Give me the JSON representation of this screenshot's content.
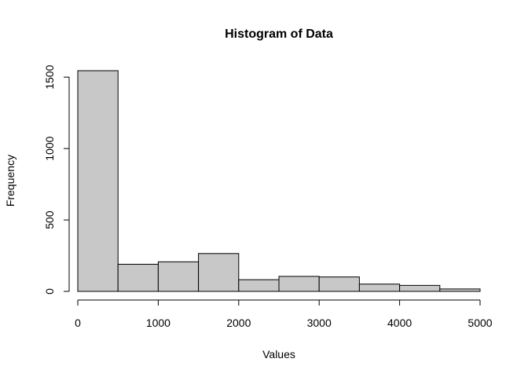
{
  "chart_data": {
    "type": "bar",
    "title": "Histogram of Data",
    "xlabel": "Values",
    "ylabel": "Frequency",
    "bins": [
      {
        "start": 0,
        "end": 500,
        "count": 1545
      },
      {
        "start": 500,
        "end": 1000,
        "count": 190
      },
      {
        "start": 1000,
        "end": 1500,
        "count": 207
      },
      {
        "start": 1500,
        "end": 2000,
        "count": 265
      },
      {
        "start": 2000,
        "end": 2500,
        "count": 82
      },
      {
        "start": 2500,
        "end": 3000,
        "count": 105
      },
      {
        "start": 3000,
        "end": 3500,
        "count": 101
      },
      {
        "start": 3500,
        "end": 4000,
        "count": 51
      },
      {
        "start": 4000,
        "end": 4500,
        "count": 42
      },
      {
        "start": 4500,
        "end": 5000,
        "count": 17
      }
    ],
    "xlim": [
      0,
      5000
    ],
    "ylim": [
      0,
      1545
    ],
    "x_ticks": [
      0,
      1000,
      2000,
      3000,
      4000,
      5000
    ],
    "y_ticks": [
      0,
      500,
      1000,
      1500
    ],
    "grid": false,
    "bar_color": "#c8c8c8",
    "edge_color": "#000000"
  }
}
